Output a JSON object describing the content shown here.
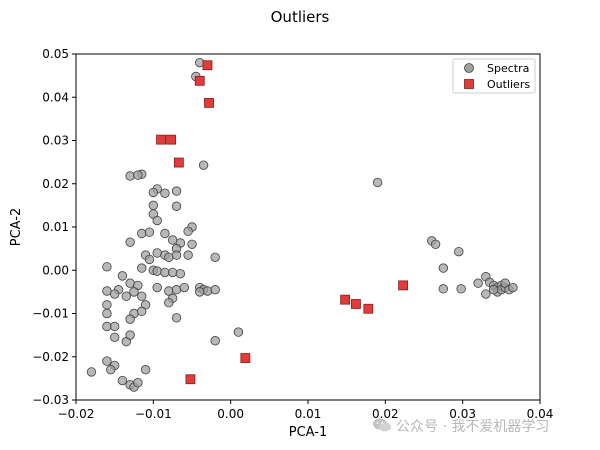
{
  "chart_data": {
    "type": "scatter",
    "title": "Outliers",
    "xlabel": "PCA-1",
    "ylabel": "PCA-2",
    "xlim": [
      -0.02,
      0.04
    ],
    "ylim": [
      -0.03,
      0.05
    ],
    "xticks": [
      -0.02,
      -0.01,
      0.0,
      0.01,
      0.02,
      0.03,
      0.04
    ],
    "xtick_labels": [
      "−0.02",
      "−0.01",
      "0.00",
      "0.01",
      "0.02",
      "0.03",
      "0.04"
    ],
    "yticks": [
      -0.03,
      -0.02,
      -0.01,
      0.0,
      0.01,
      0.02,
      0.03,
      0.04,
      0.05
    ],
    "ytick_labels": [
      "−0.03",
      "−0.02",
      "−0.01",
      "0.00",
      "0.01",
      "0.02",
      "0.03",
      "0.04",
      "0.05"
    ],
    "grid": false,
    "legend_position": "top-right",
    "series": [
      {
        "name": "Spectra",
        "marker": "circle",
        "color": "#a0a0a0",
        "edge_color": "#404040",
        "points": [
          [
            -0.0045,
            0.0448
          ],
          [
            -0.004,
            0.048
          ],
          [
            -0.0035,
            0.0243
          ],
          [
            -0.013,
            0.0218
          ],
          [
            -0.0115,
            0.0222
          ],
          [
            -0.012,
            0.022
          ],
          [
            -0.0095,
            0.0188
          ],
          [
            -0.01,
            0.018
          ],
          [
            -0.0085,
            0.0178
          ],
          [
            -0.007,
            0.0183
          ],
          [
            -0.01,
            0.015
          ],
          [
            -0.007,
            0.0148
          ],
          [
            -0.01,
            0.013
          ],
          [
            -0.0095,
            0.0115
          ],
          [
            -0.005,
            0.01
          ],
          [
            -0.0055,
            0.009
          ],
          [
            -0.013,
            0.0065
          ],
          [
            -0.0115,
            0.0085
          ],
          [
            -0.0105,
            0.0088
          ],
          [
            -0.0085,
            0.0085
          ],
          [
            -0.0075,
            0.007
          ],
          [
            -0.0065,
            0.0063
          ],
          [
            -0.005,
            0.006
          ],
          [
            -0.007,
            0.005
          ],
          [
            -0.011,
            0.0035
          ],
          [
            -0.0105,
            0.0025
          ],
          [
            -0.0095,
            0.004
          ],
          [
            -0.0085,
            0.0035
          ],
          [
            -0.008,
            0.003
          ],
          [
            -0.007,
            0.0035
          ],
          [
            -0.0055,
            0.0035
          ],
          [
            -0.002,
            0.003
          ],
          [
            -0.016,
            0.0008
          ],
          [
            -0.0115,
            0.0005
          ],
          [
            -0.01,
            0.0
          ],
          [
            -0.0095,
            -0.0002
          ],
          [
            -0.0085,
            -0.0005
          ],
          [
            -0.0075,
            -0.0005
          ],
          [
            -0.0065,
            -0.0008
          ],
          [
            -0.014,
            -0.0013
          ],
          [
            -0.013,
            -0.003
          ],
          [
            -0.012,
            -0.0035
          ],
          [
            -0.0145,
            -0.0045
          ],
          [
            -0.0125,
            -0.005
          ],
          [
            -0.0115,
            -0.006
          ],
          [
            -0.0135,
            -0.006
          ],
          [
            -0.016,
            -0.0048
          ],
          [
            -0.015,
            -0.0055
          ],
          [
            -0.0095,
            -0.004
          ],
          [
            -0.008,
            -0.0048
          ],
          [
            -0.007,
            -0.0045
          ],
          [
            -0.0075,
            -0.0065
          ],
          [
            -0.006,
            -0.004
          ],
          [
            -0.004,
            -0.004
          ],
          [
            -0.0035,
            -0.0045
          ],
          [
            -0.003,
            -0.0048
          ],
          [
            -0.002,
            -0.0045
          ],
          [
            -0.004,
            -0.005
          ],
          [
            -0.016,
            -0.008
          ],
          [
            -0.011,
            -0.008
          ],
          [
            -0.008,
            -0.0075
          ],
          [
            -0.007,
            -0.011
          ],
          [
            -0.016,
            -0.01
          ],
          [
            -0.0125,
            -0.01
          ],
          [
            -0.013,
            -0.0113
          ],
          [
            -0.0115,
            -0.0095
          ],
          [
            -0.016,
            -0.013
          ],
          [
            -0.015,
            -0.013
          ],
          [
            -0.015,
            -0.0155
          ],
          [
            -0.0135,
            -0.0165
          ],
          [
            -0.013,
            -0.015
          ],
          [
            -0.016,
            -0.021
          ],
          [
            -0.015,
            -0.022
          ],
          [
            -0.0155,
            -0.023
          ],
          [
            -0.018,
            -0.0235
          ],
          [
            -0.014,
            -0.0255
          ],
          [
            -0.013,
            -0.0265
          ],
          [
            -0.0125,
            -0.027
          ],
          [
            -0.012,
            -0.026
          ],
          [
            -0.011,
            -0.023
          ],
          [
            0.001,
            -0.0143
          ],
          [
            -0.002,
            -0.0163
          ],
          [
            0.019,
            0.0203
          ],
          [
            0.026,
            0.0068
          ],
          [
            0.0265,
            0.006
          ],
          [
            0.0295,
            0.0043
          ],
          [
            0.0275,
            0.0005
          ],
          [
            0.0275,
            -0.0043
          ],
          [
            0.0298,
            -0.0043
          ],
          [
            0.032,
            -0.003
          ],
          [
            0.033,
            -0.0015
          ],
          [
            0.0335,
            -0.0028
          ],
          [
            0.033,
            -0.0055
          ],
          [
            0.034,
            -0.0035
          ],
          [
            0.0345,
            -0.004
          ],
          [
            0.0345,
            -0.005
          ],
          [
            0.035,
            -0.0035
          ],
          [
            0.035,
            -0.0045
          ],
          [
            0.0355,
            -0.004
          ],
          [
            0.0355,
            -0.003
          ],
          [
            0.036,
            -0.0045
          ],
          [
            0.0365,
            -0.004
          ],
          [
            0.034,
            -0.0045
          ]
        ]
      },
      {
        "name": "Outliers",
        "marker": "square",
        "color": "#e03c3c",
        "edge_color": "#8a1a1a",
        "points": [
          [
            -0.003,
            0.0474
          ],
          [
            -0.004,
            0.0438
          ],
          [
            -0.0028,
            0.0387
          ],
          [
            -0.009,
            0.0302
          ],
          [
            -0.0077,
            0.0302
          ],
          [
            -0.0067,
            0.0249
          ],
          [
            0.0148,
            -0.0068
          ],
          [
            0.0162,
            -0.0078
          ],
          [
            0.0178,
            -0.0089
          ],
          [
            0.0223,
            -0.0035
          ],
          [
            0.0019,
            -0.0203
          ],
          [
            -0.0052,
            -0.0252
          ]
        ]
      }
    ]
  },
  "watermark": {
    "text": "公众号 · 我不爱机器学习",
    "icon": "wechat-icon"
  }
}
